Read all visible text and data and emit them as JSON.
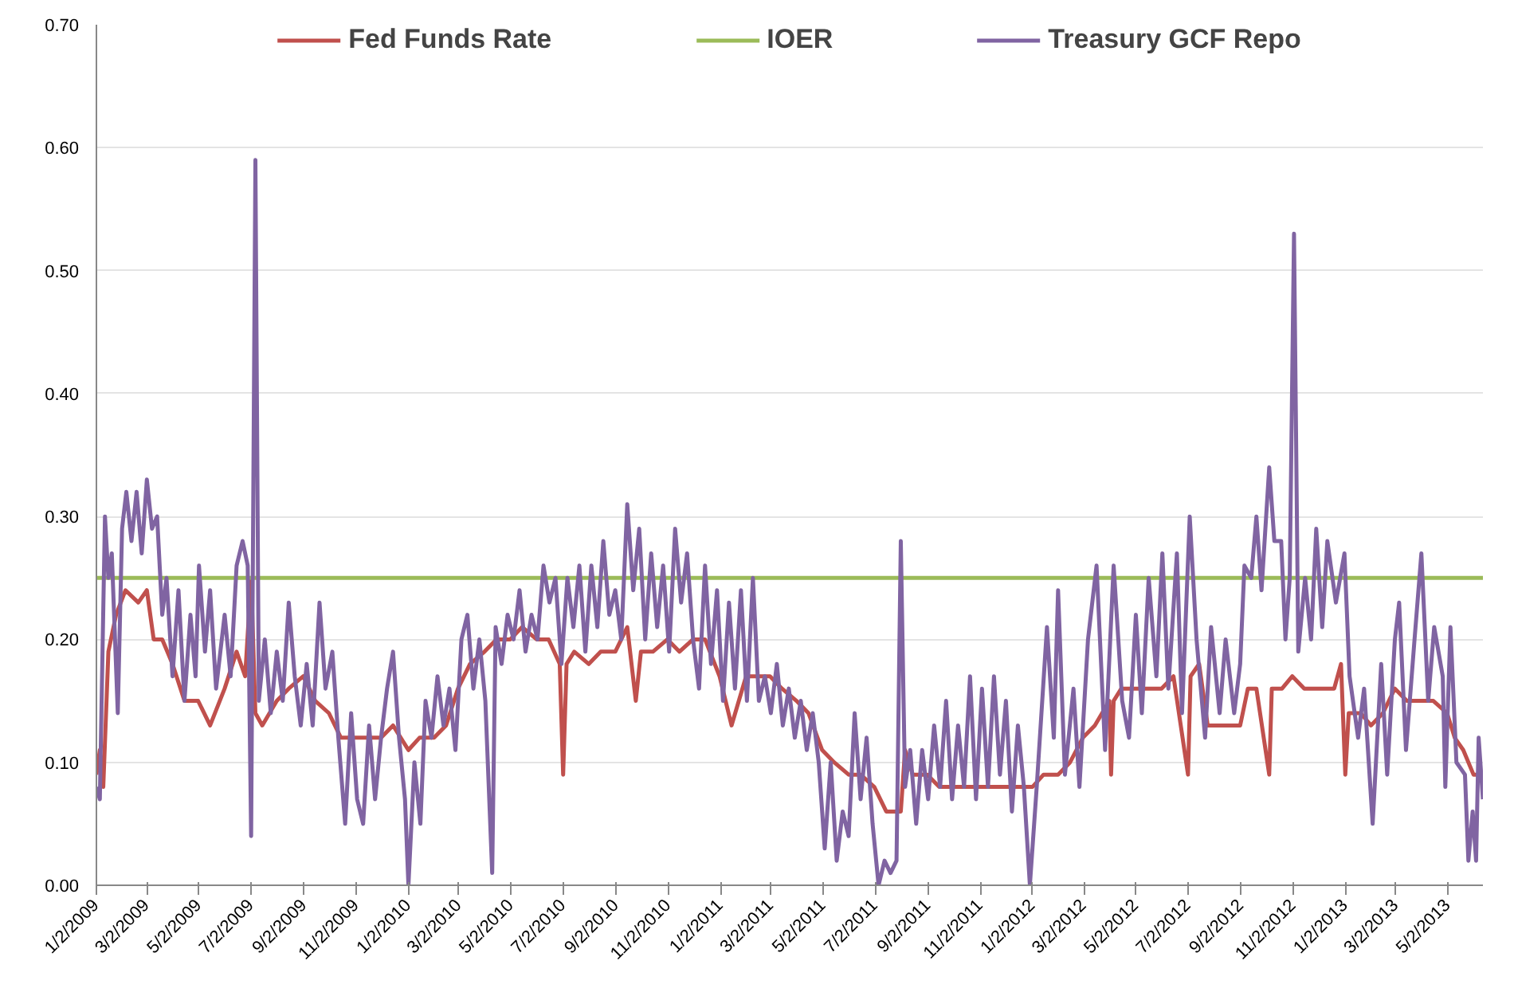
{
  "chart_data": {
    "type": "line",
    "xlim": [
      "2009-01-02",
      "2013-06-12"
    ],
    "xticks": [
      {
        "value": "2009-01-02",
        "label": "1/2/2009"
      },
      {
        "value": "2009-03-02",
        "label": "3/2/2009"
      },
      {
        "value": "2009-05-02",
        "label": "5/2/2009"
      },
      {
        "value": "2009-07-02",
        "label": "7/2/2009"
      },
      {
        "value": "2009-09-02",
        "label": "9/2/2009"
      },
      {
        "value": "2009-11-02",
        "label": "11/2/2009"
      },
      {
        "value": "2010-01-02",
        "label": "1/2/2010"
      },
      {
        "value": "2010-03-02",
        "label": "3/2/2010"
      },
      {
        "value": "2010-05-02",
        "label": "5/2/2010"
      },
      {
        "value": "2010-07-02",
        "label": "7/2/2010"
      },
      {
        "value": "2010-09-02",
        "label": "9/2/2010"
      },
      {
        "value": "2010-11-02",
        "label": "11/2/2010"
      },
      {
        "value": "2011-01-02",
        "label": "1/2/2011"
      },
      {
        "value": "2011-03-02",
        "label": "3/2/2011"
      },
      {
        "value": "2011-05-02",
        "label": "5/2/2011"
      },
      {
        "value": "2011-07-02",
        "label": "7/2/2011"
      },
      {
        "value": "2011-09-02",
        "label": "9/2/2011"
      },
      {
        "value": "2011-11-02",
        "label": "11/2/2011"
      },
      {
        "value": "2012-01-02",
        "label": "1/2/2012"
      },
      {
        "value": "2012-03-02",
        "label": "3/2/2012"
      },
      {
        "value": "2012-05-02",
        "label": "5/2/2012"
      },
      {
        "value": "2012-07-02",
        "label": "7/2/2012"
      },
      {
        "value": "2012-09-02",
        "label": "9/2/2012"
      },
      {
        "value": "2012-11-02",
        "label": "11/2/2012"
      },
      {
        "value": "2013-01-02",
        "label": "1/2/2013"
      },
      {
        "value": "2013-03-02",
        "label": "3/2/2013"
      },
      {
        "value": "2013-05-02",
        "label": "5/2/2013"
      }
    ],
    "ylim": [
      0,
      0.7
    ],
    "yticks": [
      {
        "value": 0,
        "label": "0.00"
      },
      {
        "value": 0.1,
        "label": "0.10"
      },
      {
        "value": 0.2,
        "label": "0.20"
      },
      {
        "value": 0.3,
        "label": "0.30"
      },
      {
        "value": 0.4,
        "label": "0.40"
      },
      {
        "value": 0.5,
        "label": "0.50"
      },
      {
        "value": 0.6,
        "label": "0.60"
      },
      {
        "value": 0.7,
        "label": "0.70"
      }
    ],
    "grid": "y",
    "legend": "top",
    "series": [
      {
        "name": "Fed Funds Rate",
        "color": "#c0504d",
        "x": [
          "2009-01-02",
          "2009-01-06",
          "2009-01-10",
          "2009-01-16",
          "2009-01-25",
          "2009-02-05",
          "2009-02-20",
          "2009-03-02",
          "2009-03-10",
          "2009-03-20",
          "2009-04-01",
          "2009-04-15",
          "2009-05-01",
          "2009-05-15",
          "2009-06-01",
          "2009-06-15",
          "2009-06-25",
          "2009-07-02",
          "2009-07-07",
          "2009-07-15",
          "2009-08-01",
          "2009-08-15",
          "2009-09-01",
          "2009-09-15",
          "2009-10-01",
          "2009-10-15",
          "2009-11-01",
          "2009-11-15",
          "2009-12-01",
          "2009-12-15",
          "2010-01-02",
          "2010-01-15",
          "2010-02-01",
          "2010-02-15",
          "2010-03-01",
          "2010-03-15",
          "2010-04-01",
          "2010-04-15",
          "2010-05-01",
          "2010-05-15",
          "2010-06-01",
          "2010-06-15",
          "2010-06-28",
          "2010-07-02",
          "2010-07-06",
          "2010-07-15",
          "2010-08-01",
          "2010-08-15",
          "2010-09-01",
          "2010-09-15",
          "2010-09-25",
          "2010-10-01",
          "2010-10-15",
          "2010-11-01",
          "2010-11-15",
          "2010-12-01",
          "2010-12-15",
          "2011-01-01",
          "2011-01-15",
          "2011-02-01",
          "2011-02-15",
          "2011-03-01",
          "2011-03-15",
          "2011-04-01",
          "2011-04-15",
          "2011-05-01",
          "2011-05-15",
          "2011-06-01",
          "2011-06-15",
          "2011-07-01",
          "2011-07-15",
          "2011-08-01",
          "2011-08-06",
          "2011-08-15",
          "2011-09-01",
          "2011-09-15",
          "2011-10-01",
          "2011-10-15",
          "2011-11-01",
          "2011-11-15",
          "2011-12-01",
          "2011-12-15",
          "2012-01-02",
          "2012-01-15",
          "2012-02-01",
          "2012-02-15",
          "2012-03-01",
          "2012-03-15",
          "2012-04-01",
          "2012-04-03",
          "2012-04-06",
          "2012-04-15",
          "2012-05-01",
          "2012-05-15",
          "2012-06-01",
          "2012-06-15",
          "2012-07-02",
          "2012-07-05",
          "2012-07-15",
          "2012-07-25",
          "2012-08-15",
          "2012-09-01",
          "2012-09-10",
          "2012-09-20",
          "2012-10-05",
          "2012-10-08",
          "2012-10-20",
          "2012-11-01",
          "2012-11-15",
          "2012-12-01",
          "2012-12-20",
          "2012-12-28",
          "2013-01-02",
          "2013-01-06",
          "2013-01-20",
          "2013-02-01",
          "2013-02-15",
          "2013-03-01",
          "2013-03-15",
          "2013-04-01",
          "2013-04-15",
          "2013-05-01",
          "2013-05-10",
          "2013-05-20",
          "2013-06-01",
          "2013-06-10"
        ],
        "values": [
          0.09,
          0.11,
          0.08,
          0.19,
          0.22,
          0.24,
          0.23,
          0.24,
          0.2,
          0.2,
          0.18,
          0.15,
          0.15,
          0.13,
          0.16,
          0.19,
          0.17,
          0.25,
          0.14,
          0.13,
          0.15,
          0.16,
          0.17,
          0.15,
          0.14,
          0.12,
          0.12,
          0.12,
          0.12,
          0.13,
          0.11,
          0.12,
          0.12,
          0.13,
          0.16,
          0.18,
          0.19,
          0.2,
          0.2,
          0.21,
          0.2,
          0.2,
          0.18,
          0.09,
          0.18,
          0.19,
          0.18,
          0.19,
          0.19,
          0.21,
          0.15,
          0.19,
          0.19,
          0.2,
          0.19,
          0.2,
          0.2,
          0.17,
          0.13,
          0.17,
          0.17,
          0.17,
          0.16,
          0.15,
          0.14,
          0.11,
          0.1,
          0.09,
          0.09,
          0.08,
          0.06,
          0.06,
          0.11,
          0.09,
          0.09,
          0.08,
          0.08,
          0.08,
          0.08,
          0.08,
          0.08,
          0.08,
          0.08,
          0.09,
          0.09,
          0.1,
          0.12,
          0.13,
          0.15,
          0.09,
          0.15,
          0.16,
          0.16,
          0.16,
          0.16,
          0.17,
          0.09,
          0.17,
          0.18,
          0.13,
          0.13,
          0.13,
          0.16,
          0.16,
          0.09,
          0.16,
          0.16,
          0.17,
          0.16,
          0.16,
          0.16,
          0.18,
          0.09,
          0.14,
          0.14,
          0.13,
          0.14,
          0.16,
          0.15,
          0.15,
          0.15,
          0.14,
          0.12,
          0.11,
          0.09,
          0.09
        ]
      },
      {
        "name": "IOER",
        "color": "#9bbb59",
        "x": [
          "2009-01-02",
          "2013-06-12"
        ],
        "values": [
          0.25,
          0.25
        ]
      },
      {
        "name": "Treasury GCF Repo",
        "color": "#8064a2",
        "x": [
          "2009-01-02",
          "2009-01-06",
          "2009-01-12",
          "2009-01-16",
          "2009-01-20",
          "2009-01-27",
          "2009-02-01",
          "2009-02-06",
          "2009-02-12",
          "2009-02-18",
          "2009-02-24",
          "2009-03-02",
          "2009-03-08",
          "2009-03-14",
          "2009-03-20",
          "2009-03-25",
          "2009-04-01",
          "2009-04-08",
          "2009-04-15",
          "2009-04-22",
          "2009-04-28",
          "2009-05-02",
          "2009-05-09",
          "2009-05-15",
          "2009-05-22",
          "2009-06-01",
          "2009-06-08",
          "2009-06-15",
          "2009-06-22",
          "2009-06-28",
          "2009-07-02",
          "2009-07-07",
          "2009-07-11",
          "2009-07-18",
          "2009-07-25",
          "2009-08-01",
          "2009-08-08",
          "2009-08-15",
          "2009-08-22",
          "2009-08-29",
          "2009-09-05",
          "2009-09-12",
          "2009-09-20",
          "2009-09-27",
          "2009-10-05",
          "2009-10-12",
          "2009-10-20",
          "2009-10-27",
          "2009-11-03",
          "2009-11-10",
          "2009-11-17",
          "2009-11-24",
          "2009-12-01",
          "2009-12-08",
          "2009-12-15",
          "2009-12-22",
          "2009-12-29",
          "2010-01-02",
          "2010-01-09",
          "2010-01-16",
          "2010-01-22",
          "2010-01-29",
          "2010-02-05",
          "2010-02-12",
          "2010-02-19",
          "2010-02-26",
          "2010-03-05",
          "2010-03-12",
          "2010-03-19",
          "2010-03-26",
          "2010-04-02",
          "2010-04-10",
          "2010-04-14",
          "2010-04-21",
          "2010-04-28",
          "2010-05-05",
          "2010-05-12",
          "2010-05-19",
          "2010-05-26",
          "2010-06-02",
          "2010-06-09",
          "2010-06-16",
          "2010-06-23",
          "2010-06-30",
          "2010-07-07",
          "2010-07-14",
          "2010-07-21",
          "2010-07-28",
          "2010-08-04",
          "2010-08-11",
          "2010-08-18",
          "2010-08-25",
          "2010-09-01",
          "2010-09-08",
          "2010-09-15",
          "2010-09-22",
          "2010-09-29",
          "2010-10-06",
          "2010-10-13",
          "2010-10-20",
          "2010-10-27",
          "2010-11-03",
          "2010-11-10",
          "2010-11-17",
          "2010-11-24",
          "2010-12-01",
          "2010-12-08",
          "2010-12-15",
          "2010-12-22",
          "2010-12-29",
          "2011-01-05",
          "2011-01-12",
          "2011-01-19",
          "2011-01-26",
          "2011-02-02",
          "2011-02-09",
          "2011-02-16",
          "2011-02-23",
          "2011-03-02",
          "2011-03-09",
          "2011-03-16",
          "2011-03-23",
          "2011-03-30",
          "2011-04-06",
          "2011-04-13",
          "2011-04-20",
          "2011-04-27",
          "2011-05-04",
          "2011-05-11",
          "2011-05-18",
          "2011-05-25",
          "2011-06-01",
          "2011-06-08",
          "2011-06-15",
          "2011-06-22",
          "2011-06-29",
          "2011-07-06",
          "2011-07-13",
          "2011-07-20",
          "2011-07-27",
          "2011-08-01",
          "2011-08-06",
          "2011-08-12",
          "2011-08-19",
          "2011-08-26",
          "2011-09-02",
          "2011-09-09",
          "2011-09-16",
          "2011-09-23",
          "2011-09-30",
          "2011-10-07",
          "2011-10-14",
          "2011-10-21",
          "2011-10-28",
          "2011-11-04",
          "2011-11-11",
          "2011-11-18",
          "2011-11-25",
          "2011-12-02",
          "2011-12-09",
          "2011-12-16",
          "2011-12-23",
          "2011-12-30",
          "2012-01-07",
          "2012-01-19",
          "2012-01-27",
          "2012-02-01",
          "2012-02-09",
          "2012-02-19",
          "2012-02-26",
          "2012-03-07",
          "2012-03-17",
          "2012-03-27",
          "2012-04-06",
          "2012-04-16",
          "2012-04-24",
          "2012-05-02",
          "2012-05-09",
          "2012-05-17",
          "2012-05-26",
          "2012-06-02",
          "2012-06-09",
          "2012-06-19",
          "2012-06-25",
          "2012-07-04",
          "2012-07-12",
          "2012-07-22",
          "2012-07-29",
          "2012-08-08",
          "2012-08-15",
          "2012-08-25",
          "2012-09-01",
          "2012-09-06",
          "2012-09-14",
          "2012-09-20",
          "2012-09-26",
          "2012-10-05",
          "2012-10-11",
          "2012-10-19",
          "2012-10-24",
          "2012-10-29",
          "2012-11-03",
          "2012-11-08",
          "2012-11-16",
          "2012-11-23",
          "2012-11-29",
          "2012-12-06",
          "2012-12-12",
          "2012-12-22",
          "2013-01-01",
          "2013-01-07",
          "2013-01-17",
          "2013-01-24",
          "2013-02-03",
          "2013-02-13",
          "2013-02-20",
          "2013-03-01",
          "2013-03-06",
          "2013-03-14",
          "2013-03-24",
          "2013-04-01",
          "2013-04-09",
          "2013-04-16",
          "2013-04-26",
          "2013-04-29",
          "2013-05-05",
          "2013-05-12",
          "2013-05-22",
          "2013-05-26",
          "2013-05-31",
          "2013-06-04",
          "2013-06-07",
          "2013-06-12"
        ],
        "values": [
          0.08,
          0.07,
          0.3,
          0.25,
          0.27,
          0.14,
          0.29,
          0.32,
          0.28,
          0.32,
          0.27,
          0.33,
          0.29,
          0.3,
          0.22,
          0.25,
          0.17,
          0.24,
          0.15,
          0.22,
          0.17,
          0.26,
          0.19,
          0.24,
          0.16,
          0.22,
          0.17,
          0.26,
          0.28,
          0.26,
          0.04,
          0.59,
          0.15,
          0.2,
          0.14,
          0.19,
          0.15,
          0.23,
          0.17,
          0.13,
          0.18,
          0.13,
          0.23,
          0.16,
          0.19,
          0.12,
          0.05,
          0.14,
          0.07,
          0.05,
          0.13,
          0.07,
          0.12,
          0.16,
          0.19,
          0.12,
          0.07,
          0.0,
          0.1,
          0.05,
          0.15,
          0.12,
          0.17,
          0.13,
          0.16,
          0.11,
          0.2,
          0.22,
          0.16,
          0.2,
          0.15,
          0.01,
          0.21,
          0.18,
          0.22,
          0.2,
          0.24,
          0.19,
          0.22,
          0.2,
          0.26,
          0.23,
          0.25,
          0.18,
          0.25,
          0.21,
          0.26,
          0.19,
          0.26,
          0.21,
          0.28,
          0.22,
          0.24,
          0.2,
          0.31,
          0.24,
          0.29,
          0.2,
          0.27,
          0.21,
          0.26,
          0.19,
          0.29,
          0.23,
          0.27,
          0.2,
          0.16,
          0.26,
          0.18,
          0.24,
          0.15,
          0.23,
          0.16,
          0.24,
          0.15,
          0.25,
          0.15,
          0.17,
          0.14,
          0.18,
          0.13,
          0.16,
          0.12,
          0.15,
          0.11,
          0.14,
          0.1,
          0.03,
          0.1,
          0.02,
          0.06,
          0.04,
          0.14,
          0.07,
          0.12,
          0.05,
          0.0,
          0.02,
          0.01,
          0.02,
          0.28,
          0.08,
          0.11,
          0.05,
          0.11,
          0.07,
          0.13,
          0.08,
          0.15,
          0.07,
          0.13,
          0.08,
          0.17,
          0.07,
          0.16,
          0.08,
          0.17,
          0.09,
          0.15,
          0.06,
          0.13,
          0.08,
          0.0,
          0.08,
          0.21,
          0.12,
          0.24,
          0.09,
          0.16,
          0.08,
          0.2,
          0.26,
          0.11,
          0.26,
          0.15,
          0.12,
          0.22,
          0.14,
          0.25,
          0.17,
          0.27,
          0.16,
          0.27,
          0.14,
          0.3,
          0.2,
          0.12,
          0.21,
          0.14,
          0.2,
          0.14,
          0.18,
          0.26,
          0.25,
          0.3,
          0.24,
          0.34,
          0.28,
          0.28,
          0.2,
          0.25,
          0.53,
          0.19,
          0.25,
          0.2,
          0.29,
          0.21,
          0.28,
          0.23,
          0.27,
          0.17,
          0.12,
          0.16,
          0.05,
          0.18,
          0.09,
          0.2,
          0.23,
          0.11,
          0.2,
          0.27,
          0.15,
          0.21,
          0.17,
          0.08,
          0.21,
          0.1,
          0.09,
          0.02,
          0.06,
          0.02,
          0.12,
          0.07
        ]
      }
    ]
  }
}
